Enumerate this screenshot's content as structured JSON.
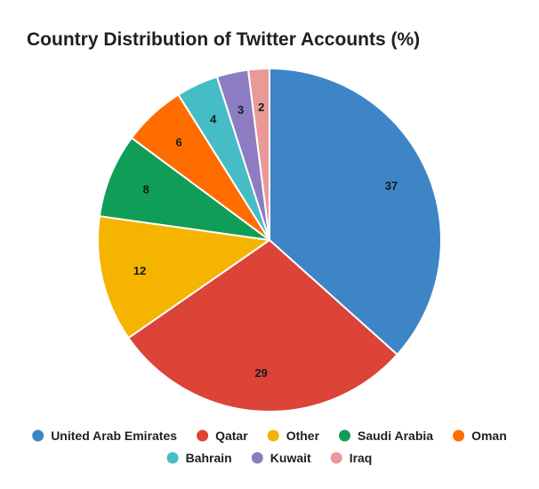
{
  "chart_data": {
    "type": "pie",
    "title": "Country Distribution of Twitter Accounts (%)",
    "slices": [
      {
        "label": "United Arab Emirates",
        "value": 37,
        "color": "#3d85c6"
      },
      {
        "label": "Qatar",
        "value": 29,
        "color": "#db4437"
      },
      {
        "label": "Other",
        "value": 12,
        "color": "#f4b400"
      },
      {
        "label": "Saudi Arabia",
        "value": 8,
        "color": "#0f9d58"
      },
      {
        "label": "Oman",
        "value": 6,
        "color": "#ff6d01"
      },
      {
        "label": "Bahrain",
        "value": 4,
        "color": "#46bdc6"
      },
      {
        "label": "Kuwait",
        "value": 3,
        "color": "#8e7cc3"
      },
      {
        "label": "Iraq",
        "value": 2,
        "color": "#ea9999"
      }
    ],
    "data_labels": true,
    "legend_position": "bottom"
  }
}
